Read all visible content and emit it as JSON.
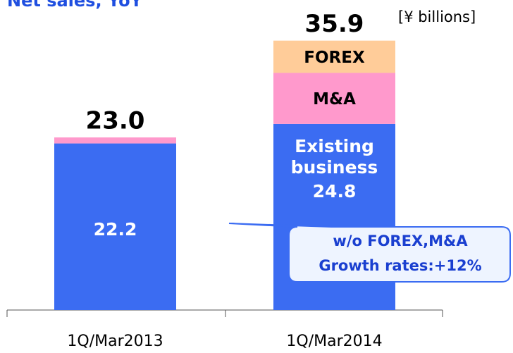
{
  "chart_data": {
    "type": "stacked_bar",
    "title": "Net sales, YoY",
    "unit_label": "[¥ billions]",
    "categories": [
      "1Q/Mar2013",
      "1Q/Mar2014"
    ],
    "series": [
      {
        "name": "Existing business",
        "color": "#3b6cf2",
        "values": [
          22.2,
          24.8
        ],
        "value_labels": [
          "22.2",
          "24.8"
        ]
      },
      {
        "name": "M&A",
        "color": "#ff99cc",
        "values": [
          0.8,
          6.8
        ]
      },
      {
        "name": "FOREX",
        "color": "#ffcc99",
        "values": [
          0,
          4.3
        ]
      }
    ],
    "totals": [
      23.0,
      35.9
    ],
    "totals_labels": [
      "23.0",
      "35.9"
    ],
    "annotations": [
      "w/o FOREX,M&A",
      "Growth rates:+12%"
    ],
    "ylim": [
      0,
      40
    ]
  }
}
